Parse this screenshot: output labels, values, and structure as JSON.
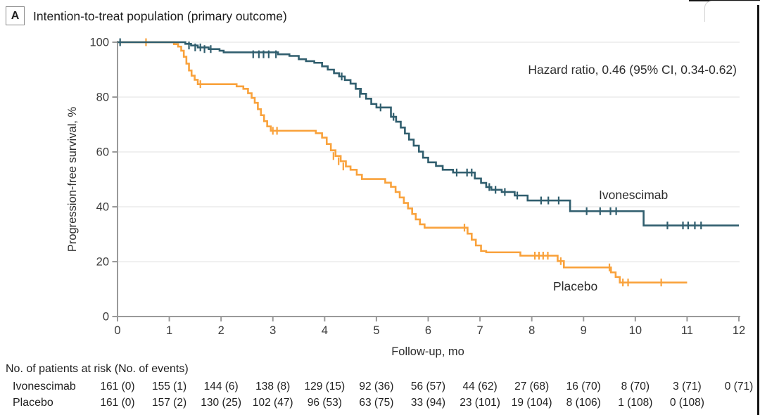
{
  "panel": {
    "label": "A",
    "title": "Intention-to-treat population (primary outcome)"
  },
  "colors": {
    "axis": "#9a9a9a",
    "grid": "#e6e6e6",
    "tick_text": "#3b3b3b",
    "teal": "#305e6e",
    "orange": "#f9a23c"
  },
  "chart_data": {
    "type": "line",
    "subtype": "kaplan-meier-step",
    "title": "Intention-to-treat population (primary outcome)",
    "xlabel": "Follow-up, mo",
    "ylabel": "Progression-free survival, %",
    "xlim": [
      0,
      12
    ],
    "ylim": [
      0,
      100
    ],
    "xticks": [
      0,
      1,
      2,
      3,
      4,
      5,
      6,
      7,
      8,
      9,
      10,
      11,
      12
    ],
    "yticks": [
      0,
      20,
      40,
      60,
      80,
      100
    ],
    "grid": "horizontal",
    "legend_position": "inline-labels",
    "annotation": {
      "text": "Hazard ratio, 0.46 (95% CI, 0.34-0.62)"
    },
    "series": [
      {
        "name": "Ivonescimab",
        "color": "#305e6e",
        "end_x": 12,
        "steps": [
          [
            0,
            100
          ],
          [
            1.31,
            99.4
          ],
          [
            1.42,
            98.8
          ],
          [
            1.55,
            98.1
          ],
          [
            1.76,
            97.5
          ],
          [
            1.97,
            96.9
          ],
          [
            2.05,
            96.3
          ],
          [
            3.1,
            95.6
          ],
          [
            3.32,
            95.0
          ],
          [
            3.5,
            93.8
          ],
          [
            3.64,
            93.1
          ],
          [
            3.8,
            92.5
          ],
          [
            3.95,
            91.2
          ],
          [
            4.06,
            90.0
          ],
          [
            4.18,
            88.7
          ],
          [
            4.28,
            87.5
          ],
          [
            4.39,
            86.2
          ],
          [
            4.5,
            84.9
          ],
          [
            4.6,
            83.0
          ],
          [
            4.7,
            81.2
          ],
          [
            4.8,
            79.4
          ],
          [
            4.9,
            77.5
          ],
          [
            5.0,
            76.2
          ],
          [
            5.28,
            72.8
          ],
          [
            5.38,
            71.0
          ],
          [
            5.47,
            68.9
          ],
          [
            5.55,
            66.7
          ],
          [
            5.63,
            64.5
          ],
          [
            5.72,
            62.3
          ],
          [
            5.82,
            60.1
          ],
          [
            5.9,
            57.9
          ],
          [
            6.0,
            56.2
          ],
          [
            6.15,
            54.9
          ],
          [
            6.28,
            53.5
          ],
          [
            6.48,
            52.5
          ],
          [
            6.9,
            50.3
          ],
          [
            7.02,
            48.7
          ],
          [
            7.12,
            47.2
          ],
          [
            7.22,
            46.2
          ],
          [
            7.42,
            45.4
          ],
          [
            7.67,
            44.1
          ],
          [
            7.92,
            42.3
          ],
          [
            8.74,
            38.4
          ],
          [
            10.16,
            33.2
          ]
        ],
        "censors": [
          [
            0.05,
            100
          ],
          [
            1.38,
            98.8
          ],
          [
            1.5,
            98.1
          ],
          [
            1.6,
            98.1
          ],
          [
            1.68,
            97.5
          ],
          [
            1.8,
            97.5
          ],
          [
            2.62,
            95.6
          ],
          [
            2.73,
            95.6
          ],
          [
            2.82,
            95.6
          ],
          [
            2.92,
            95.6
          ],
          [
            3.06,
            95.6
          ],
          [
            4.33,
            87.5
          ],
          [
            4.68,
            81.2
          ],
          [
            5.08,
            76.2
          ],
          [
            5.33,
            72.8
          ],
          [
            6.55,
            52.5
          ],
          [
            6.75,
            52.5
          ],
          [
            6.84,
            52.5
          ],
          [
            7.18,
            47.2
          ],
          [
            7.3,
            46.2
          ],
          [
            7.48,
            45.4
          ],
          [
            7.72,
            44.1
          ],
          [
            8.18,
            42.3
          ],
          [
            8.32,
            42.3
          ],
          [
            8.52,
            42.3
          ],
          [
            9.06,
            38.4
          ],
          [
            9.32,
            38.4
          ],
          [
            9.52,
            38.4
          ],
          [
            9.63,
            38.4
          ],
          [
            10.62,
            33.2
          ],
          [
            10.92,
            33.2
          ],
          [
            11.02,
            33.2
          ],
          [
            11.15,
            33.2
          ],
          [
            11.27,
            33.2
          ]
        ]
      },
      {
        "name": "Placebo",
        "color": "#f9a23c",
        "end_x": 11,
        "steps": [
          [
            0,
            100
          ],
          [
            1.09,
            99.3
          ],
          [
            1.17,
            98.4
          ],
          [
            1.23,
            96.9
          ],
          [
            1.28,
            94.7
          ],
          [
            1.33,
            92.2
          ],
          [
            1.38,
            89.7
          ],
          [
            1.43,
            87.8
          ],
          [
            1.49,
            86.3
          ],
          [
            1.55,
            84.7
          ],
          [
            2.3,
            83.9
          ],
          [
            2.43,
            83.0
          ],
          [
            2.52,
            81.4
          ],
          [
            2.59,
            79.7
          ],
          [
            2.65,
            77.9
          ],
          [
            2.71,
            75.6
          ],
          [
            2.77,
            73.4
          ],
          [
            2.83,
            71.2
          ],
          [
            2.89,
            69.3
          ],
          [
            2.96,
            67.7
          ],
          [
            3.83,
            66.8
          ],
          [
            3.95,
            65.2
          ],
          [
            4.04,
            62.9
          ],
          [
            4.12,
            60.6
          ],
          [
            4.21,
            58.5
          ],
          [
            4.31,
            56.6
          ],
          [
            4.41,
            54.7
          ],
          [
            4.5,
            53.5
          ],
          [
            4.62,
            51.7
          ],
          [
            4.72,
            50.1
          ],
          [
            5.17,
            48.8
          ],
          [
            5.28,
            47.3
          ],
          [
            5.37,
            45.4
          ],
          [
            5.45,
            43.4
          ],
          [
            5.53,
            41.4
          ],
          [
            5.61,
            39.4
          ],
          [
            5.69,
            37.4
          ],
          [
            5.76,
            35.4
          ],
          [
            5.84,
            33.6
          ],
          [
            5.93,
            32.4
          ],
          [
            6.76,
            30.2
          ],
          [
            6.84,
            28.0
          ],
          [
            6.92,
            25.9
          ],
          [
            7.02,
            23.9
          ],
          [
            7.12,
            23.4
          ],
          [
            7.78,
            22.2
          ],
          [
            8.5,
            20.2
          ],
          [
            8.62,
            17.9
          ],
          [
            9.53,
            16.1
          ],
          [
            9.62,
            14.4
          ],
          [
            9.7,
            12.4
          ]
        ],
        "censors": [
          [
            0.55,
            100
          ],
          [
            1.6,
            84.7
          ],
          [
            3.0,
            67.7
          ],
          [
            3.08,
            67.7
          ],
          [
            4.17,
            58.5
          ],
          [
            4.27,
            56.6
          ],
          [
            4.36,
            54.7
          ],
          [
            6.7,
            32.4
          ],
          [
            8.06,
            22.2
          ],
          [
            8.14,
            22.2
          ],
          [
            8.22,
            22.2
          ],
          [
            8.31,
            22.2
          ],
          [
            8.56,
            20.2
          ],
          [
            9.5,
            17.9
          ],
          [
            9.76,
            12.4
          ],
          [
            9.86,
            12.4
          ],
          [
            10.5,
            12.4
          ]
        ]
      }
    ]
  },
  "at_risk_table": {
    "header": "No. of patients at risk (No. of events)",
    "rows": [
      {
        "label": "Ivonescimab",
        "months": [
          0,
          1,
          2,
          3,
          4,
          5,
          6,
          7,
          8,
          9,
          10,
          11,
          12
        ],
        "values": [
          "161 (0)",
          "155 (1)",
          "144 (6)",
          "138 (8)",
          "129 (15)",
          "92 (36)",
          "56 (57)",
          "44 (62)",
          "27 (68)",
          "16 (70)",
          "8 (70)",
          "3 (71)",
          "0 (71)"
        ]
      },
      {
        "label": "Placebo",
        "months": [
          0,
          1,
          2,
          3,
          4,
          5,
          6,
          7,
          8,
          9,
          10,
          11
        ],
        "values": [
          "161 (0)",
          "157 (2)",
          "130 (25)",
          "102 (47)",
          "96 (53)",
          "63 (75)",
          "33 (94)",
          "23 (101)",
          "19 (104)",
          "8 (106)",
          "1 (108)",
          "0 (108)"
        ]
      }
    ]
  }
}
